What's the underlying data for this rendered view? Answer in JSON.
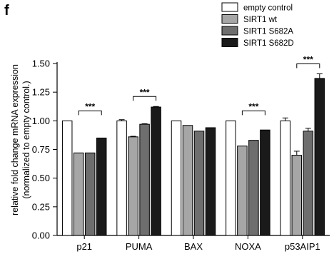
{
  "panel_label": "f",
  "chart_data": {
    "type": "bar",
    "title": "",
    "xlabel": "",
    "ylabel_lines": [
      "relative fold change mRNA expression",
      "(normalized to empty control.)"
    ],
    "ylim": [
      0,
      1.5
    ],
    "yticks": [
      "0.00",
      "0.25",
      "0.50",
      "0.75",
      "1.00",
      "1.25",
      "1.50"
    ],
    "categories": [
      "p21",
      "PUMA",
      "BAX",
      "NOXA",
      "p53AIP1"
    ],
    "series": [
      {
        "name": "empty control",
        "color": "#ffffff",
        "values": [
          1.0,
          1.0,
          1.0,
          1.0,
          1.0
        ],
        "errors": [
          0,
          0.01,
          0,
          0,
          0.025
        ]
      },
      {
        "name": "SIRT1 wt",
        "color": "#a6a6a6",
        "values": [
          0.72,
          0.86,
          0.96,
          0.78,
          0.7
        ],
        "errors": [
          0,
          0.005,
          0,
          0,
          0.035
        ]
      },
      {
        "name": "SIRT1 S682A",
        "color": "#6e6e6e",
        "values": [
          0.72,
          0.97,
          0.91,
          0.83,
          0.91
        ],
        "errors": [
          0,
          0.005,
          0,
          0,
          0.025
        ]
      },
      {
        "name": "SIRT1 S682D",
        "color": "#1a1a1a",
        "values": [
          0.85,
          1.12,
          0.94,
          0.92,
          1.37
        ],
        "errors": [
          0,
          0.005,
          0,
          0,
          0.04
        ]
      }
    ],
    "significance": [
      {
        "category": "p21",
        "from_series": 1,
        "to_series": 3,
        "label": "***"
      },
      {
        "category": "PUMA",
        "from_series": 1,
        "to_series": 3,
        "label": "***"
      },
      {
        "category": "NOXA",
        "from_series": 1,
        "to_series": 3,
        "label": "***"
      },
      {
        "category": "p53AIP1",
        "from_series": 1,
        "to_series": 3,
        "label": "***"
      }
    ],
    "legend_position": "top-right",
    "grid": false
  }
}
